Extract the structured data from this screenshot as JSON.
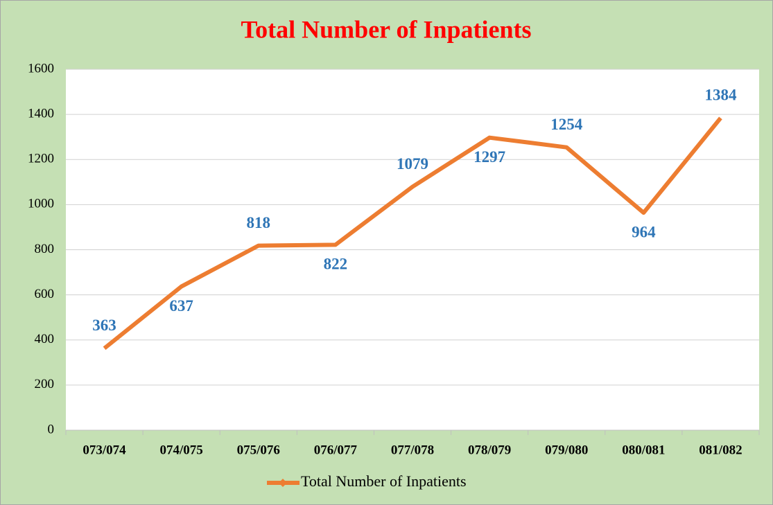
{
  "chart_data": {
    "type": "line",
    "title": "Total Number of Inpatients",
    "categories": [
      "073/074",
      "074/075",
      "075/076",
      "076/077",
      "077/078",
      "078/079",
      "079/080",
      "080/081",
      "081/082"
    ],
    "series": [
      {
        "name": "Total Number of Inpatients",
        "color": "#ed7d31",
        "values": [
          363,
          637,
          818,
          822,
          1079,
          1297,
          1254,
          964,
          1384
        ]
      }
    ],
    "ylim": [
      0,
      1600
    ],
    "yticks": [
      0,
      200,
      400,
      600,
      800,
      1000,
      1200,
      1400,
      1600
    ],
    "grid": true,
    "legend": "bottom",
    "label_color": "#2e75b6",
    "title_color": "#ff0000"
  }
}
